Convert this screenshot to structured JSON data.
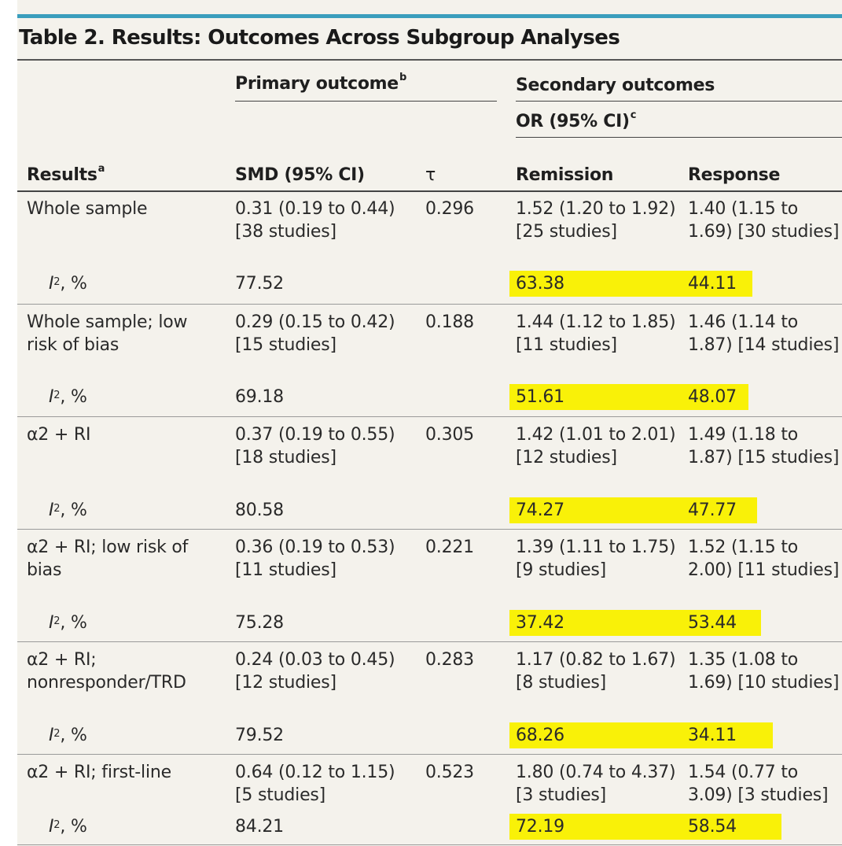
{
  "table": {
    "title": "Table 2. Results: Outcomes Across Subgroup Analyses",
    "headers": {
      "primary_group": "Primary outcome",
      "primary_group_sup": "b",
      "secondary_group": "Secondary outcomes",
      "or_subgroup": "OR (95% CI)",
      "or_subgroup_sup": "c",
      "results": "Results",
      "results_sup": "a",
      "smd": "SMD (95% CI)",
      "tau": "τ",
      "remission": "Remission",
      "response": "Response"
    },
    "i2_label": {
      "letter": "I",
      "sup": "2",
      "suffix": ", %"
    },
    "rows": [
      {
        "label": "Whole sample",
        "smd": "0.31 (0.19 to 0.44) [38 studies]",
        "tau": "0.296",
        "remission": "1.52 (1.20 to 1.92) [25 studies]",
        "response": "1.40 (1.15 to 1.69) [30 studies]",
        "i2_smd": "77.52",
        "i2_remission": "63.38",
        "i2_response": "44.11"
      },
      {
        "label": "Whole sample; low risk of bias",
        "smd": "0.29 (0.15 to 0.42) [15 studies]",
        "tau": "0.188",
        "remission": "1.44 (1.12 to 1.85) [11 studies]",
        "response": "1.46 (1.14 to 1.87) [14 studies]",
        "i2_smd": "69.18",
        "i2_remission": "51.61",
        "i2_response": "48.07"
      },
      {
        "label": "α2 + RI",
        "smd": "0.37 (0.19 to 0.55) [18 studies]",
        "tau": "0.305",
        "remission": "1.42 (1.01 to 2.01) [12 studies]",
        "response": "1.49 (1.18 to 1.87) [15 studies]",
        "i2_smd": "80.58",
        "i2_remission": "74.27",
        "i2_response": "47.77"
      },
      {
        "label": "α2 + RI; low risk of bias",
        "smd": "0.36 (0.19 to 0.53) [11 studies]",
        "tau": "0.221",
        "remission": "1.39 (1.11 to 1.75) [9 studies]",
        "response": "1.52 (1.15 to 2.00) [11 studies]",
        "i2_smd": "75.28",
        "i2_remission": "37.42",
        "i2_response": "53.44"
      },
      {
        "label": "α2 + RI; nonresponder/TRD",
        "smd": "0.24 (0.03 to 0.45) [12 studies]",
        "tau": "0.283",
        "remission": "1.17 (0.82 to 1.67) [8 studies]",
        "response": "1.35 (1.08 to 1.69) [10 studies]",
        "i2_smd": "79.52",
        "i2_remission": "68.26",
        "i2_response": "34.11"
      },
      {
        "label": "α2 + RI; first-line",
        "smd": "0.64 (0.12 to 1.15) [5 studies]",
        "tau": "0.523",
        "remission": "1.80 (0.74 to 4.37) [3 studies]",
        "response": "1.54 (0.77 to 3.09) [3 studies]",
        "i2_smd": "84.21",
        "i2_remission": "72.19",
        "i2_response": "58.54"
      }
    ],
    "colors": {
      "accent_bar": "#3a9ebd",
      "highlight": "#f9f108",
      "background": "#f4f2ec"
    }
  }
}
